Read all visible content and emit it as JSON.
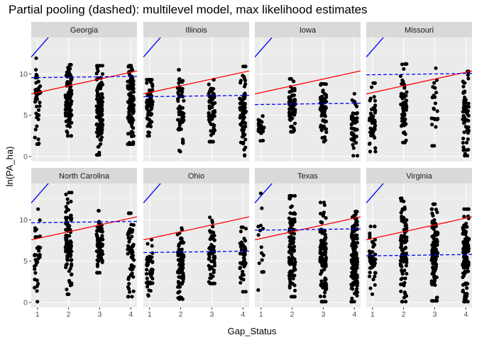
{
  "chart_data": {
    "type": "scatter",
    "title": "Partial pooling (dashed): multilevel model, max likelihood estimates",
    "xlabel": "Gap_Status",
    "ylabel": "ln(PA_ha)",
    "x_ticks": [
      1,
      2,
      3,
      4
    ],
    "y_ticks": [
      0,
      5,
      10
    ],
    "xlim": [
      0.8,
      4.2
    ],
    "ylim": [
      -0.6,
      14.4
    ],
    "grid": true,
    "facets": [
      "Georgia",
      "Illinois",
      "Iowa",
      "Missouri",
      "North Carolina",
      "Ohio",
      "Texas",
      "Virginia"
    ],
    "facet_layout": {
      "nrow": 2,
      "ncol": 4
    },
    "series": [
      {
        "style": "solid",
        "color": "#ff0000",
        "intercept": 6.92,
        "slope": 0.82
      },
      {
        "style": "solid",
        "color": "#0000ff",
        "intercept": 8.6,
        "slope": 4.3
      },
      {
        "style": "dashed",
        "color": "#0000ff",
        "by_facet": {
          "Georgia": {
            "intercept": 9.5,
            "slope": 0.05
          },
          "Illinois": {
            "intercept": 7.2,
            "slope": 0.05
          },
          "Iowa": {
            "intercept": 6.25,
            "slope": 0.05
          },
          "Missouri": {
            "intercept": 9.85,
            "slope": 0.05
          },
          "North Carolina": {
            "intercept": 9.6,
            "slope": 0.05
          },
          "Ohio": {
            "intercept": 6.0,
            "slope": 0.05
          },
          "Texas": {
            "intercept": 8.7,
            "slope": 0.05
          },
          "Virginia": {
            "intercept": 5.6,
            "slope": 0.05
          }
        }
      }
    ],
    "point_groups": {
      "Georgia": [
        {
          "x": 1,
          "n": 45,
          "min": 1.5,
          "max": 11.9
        },
        {
          "x": 2,
          "n": 110,
          "min": 2.5,
          "max": 11.1
        },
        {
          "x": 3,
          "n": 120,
          "min": 0.2,
          "max": 11.0
        },
        {
          "x": 4,
          "n": 130,
          "min": 1.5,
          "max": 11.0
        }
      ],
      "Illinois": [
        {
          "x": 1,
          "n": 70,
          "min": 2.5,
          "max": 9.3
        },
        {
          "x": 2,
          "n": 70,
          "min": 0.6,
          "max": 10.5
        },
        {
          "x": 3,
          "n": 60,
          "min": 1.8,
          "max": 9.3
        },
        {
          "x": 4,
          "n": 70,
          "min": 0.1,
          "max": 10.9
        }
      ],
      "Iowa": [
        {
          "x": 1,
          "n": 25,
          "min": 1.9,
          "max": 4.9
        },
        {
          "x": 2,
          "n": 70,
          "min": 3.0,
          "max": 9.4
        },
        {
          "x": 3,
          "n": 60,
          "min": 1.8,
          "max": 8.8
        },
        {
          "x": 4,
          "n": 50,
          "min": 0.1,
          "max": 7.6
        }
      ],
      "Missouri": [
        {
          "x": 1,
          "n": 50,
          "min": 0.6,
          "max": 8.9
        },
        {
          "x": 2,
          "n": 60,
          "min": 1.7,
          "max": 11.2
        },
        {
          "x": 3,
          "n": 25,
          "min": 1.3,
          "max": 10.7
        },
        {
          "x": 4,
          "n": 70,
          "min": 0.1,
          "max": 10.3
        }
      ],
      "North Carolina": [
        {
          "x": 1,
          "n": 35,
          "min": 0.1,
          "max": 11.3
        },
        {
          "x": 2,
          "n": 100,
          "min": 1.0,
          "max": 13.3
        },
        {
          "x": 3,
          "n": 70,
          "min": 3.6,
          "max": 11.1
        },
        {
          "x": 4,
          "n": 60,
          "min": 0.7,
          "max": 10.8
        }
      ],
      "Ohio": [
        {
          "x": 1,
          "n": 50,
          "min": 0.8,
          "max": 7.6
        },
        {
          "x": 2,
          "n": 80,
          "min": 0.4,
          "max": 9.0
        },
        {
          "x": 3,
          "n": 60,
          "min": 2.3,
          "max": 10.3
        },
        {
          "x": 4,
          "n": 50,
          "min": 1.3,
          "max": 9.1
        }
      ],
      "Texas": [
        {
          "x": 1,
          "n": 15,
          "min": 1.5,
          "max": 13.2
        },
        {
          "x": 2,
          "n": 110,
          "min": 0.7,
          "max": 12.9
        },
        {
          "x": 3,
          "n": 120,
          "min": 0.1,
          "max": 12.1
        },
        {
          "x": 4,
          "n": 150,
          "min": 0.1,
          "max": 11.0
        }
      ],
      "Virginia": [
        {
          "x": 1,
          "n": 45,
          "min": 1.0,
          "max": 9.2
        },
        {
          "x": 2,
          "n": 100,
          "min": 0.1,
          "max": 12.6
        },
        {
          "x": 3,
          "n": 110,
          "min": 0.2,
          "max": 11.9
        },
        {
          "x": 4,
          "n": 130,
          "min": 0.1,
          "max": 11.3
        }
      ]
    }
  }
}
